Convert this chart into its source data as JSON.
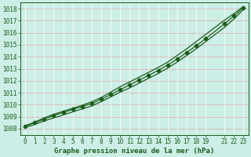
{
  "xlabel": "Graphe pression niveau de la mer (hPa)",
  "ylim": [
    1007.5,
    1018.5
  ],
  "xlim": [
    -0.5,
    23.5
  ],
  "yticks": [
    1008,
    1009,
    1010,
    1011,
    1012,
    1013,
    1014,
    1015,
    1016,
    1017,
    1018
  ],
  "xticks": [
    0,
    1,
    2,
    3,
    4,
    5,
    6,
    7,
    8,
    9,
    10,
    11,
    12,
    13,
    14,
    15,
    16,
    17,
    18,
    19,
    21,
    22,
    23
  ],
  "background_color": "#cceee6",
  "grid_color_h": "#ddaaaa",
  "grid_color_v": "#ffffff",
  "line_color": "#1a5c1a",
  "main_data_x": [
    0,
    1,
    2,
    3,
    4,
    5,
    6,
    7,
    8,
    9,
    10,
    11,
    12,
    13,
    14,
    15,
    16,
    17,
    18,
    19,
    21,
    22,
    23
  ],
  "main_data_y": [
    1008.2,
    1008.5,
    1008.8,
    1009.1,
    1009.35,
    1009.6,
    1009.85,
    1010.1,
    1010.45,
    1010.85,
    1011.25,
    1011.65,
    1012.05,
    1012.45,
    1012.85,
    1013.3,
    1013.8,
    1014.35,
    1014.9,
    1015.5,
    1016.75,
    1017.4,
    1018.1
  ],
  "upper_data_y": [
    1008.25,
    1008.55,
    1008.9,
    1009.2,
    1009.45,
    1009.7,
    1009.95,
    1010.25,
    1010.6,
    1011.05,
    1011.5,
    1011.9,
    1012.3,
    1012.7,
    1013.1,
    1013.55,
    1014.1,
    1014.65,
    1015.25,
    1015.85,
    1017.05,
    1017.6,
    1018.2
  ],
  "lower_data_y": [
    1008.1,
    1008.35,
    1008.65,
    1008.9,
    1009.15,
    1009.4,
    1009.65,
    1009.9,
    1010.25,
    1010.65,
    1011.05,
    1011.4,
    1011.8,
    1012.2,
    1012.6,
    1013.05,
    1013.55,
    1014.1,
    1014.65,
    1015.25,
    1016.45,
    1017.15,
    1017.95
  ],
  "marker_style": "D",
  "marker_size": 2.5,
  "line_width": 0.9,
  "xlabel_fontsize": 6.5,
  "tick_fontsize": 5.5,
  "title_color": "#1a5c1a",
  "tick_color": "#1a5c1a"
}
